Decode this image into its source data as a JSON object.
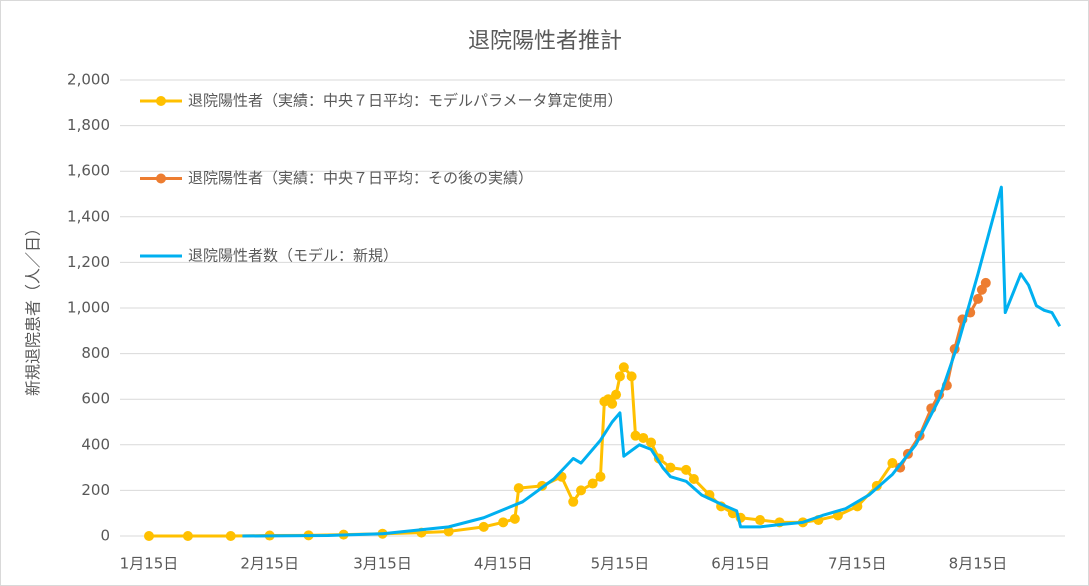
{
  "chart_data": {
    "type": "line",
    "title": "退院陽性者推計",
    "y_label": "新規退院患者（人／日）",
    "ylim": [
      0,
      2000
    ],
    "yticks": [
      0,
      200,
      400,
      600,
      800,
      {
        "value": 1000,
        "label": "1,000"
      },
      {
        "value": 1200,
        "label": "1,200"
      },
      {
        "value": 1400,
        "label": "1,400"
      },
      {
        "value": 1600,
        "label": "1,600"
      },
      {
        "value": 1800,
        "label": "1,800"
      },
      {
        "value": 2000,
        "label": "2,000"
      }
    ],
    "xticks": [
      "1月15日",
      "2月15日",
      "3月15日",
      "4月15日",
      "5月15日",
      "6月15日",
      "7月15日",
      "8月15日"
    ],
    "grid": true,
    "series": [
      {
        "name": "退院陽性者（実績：中央７日平均：モデルパラメータ算定使用）",
        "color": "#ffc000",
        "markers": true,
        "x": [
          "1月15日",
          "1月25日",
          "2月5日",
          "2月15日",
          "2月25日",
          "3月5日",
          "3月15日",
          "3月25日",
          "4月1日",
          "4月10日",
          "4月15日",
          "4月18日",
          "4月19日",
          "4月25日",
          "4月30日",
          "5月3日",
          "5月5日",
          "5月8日",
          "5月10日",
          "5月11日",
          "5月12日",
          "5月13日",
          "5月14日",
          "5月15日",
          "5月16日",
          "5月18日",
          "5月19日",
          "5月21日",
          "5月23日",
          "5月25日",
          "5月28日",
          "6月1日",
          "6月3日",
          "6月7日",
          "6月10日",
          "6月13日",
          "6月15日",
          "6月20日",
          "6月25日",
          "7月1日",
          "7月5日",
          "7月10日",
          "7月15日",
          "7月20日",
          "7月24日"
        ],
        "values": [
          0,
          0,
          0,
          2,
          3,
          6,
          10,
          15,
          20,
          40,
          60,
          75,
          210,
          220,
          260,
          150,
          200,
          230,
          260,
          590,
          600,
          580,
          620,
          700,
          740,
          700,
          440,
          430,
          410,
          340,
          300,
          290,
          250,
          180,
          130,
          100,
          80,
          70,
          60,
          60,
          70,
          90,
          130,
          220,
          320
        ]
      },
      {
        "name": "退院陽性者（実績：中央７日平均：その後の実績）",
        "color": "#ed7d31",
        "markers": true,
        "x": [
          "7月26日",
          "7月28日",
          "7月31日",
          "8月3日",
          "8月5日",
          "8月7日",
          "8月9日",
          "8月11日",
          "8月13日",
          "8月15日",
          "8月16日",
          "8月17日"
        ],
        "values": [
          300,
          360,
          440,
          560,
          620,
          660,
          820,
          950,
          980,
          1040,
          1080,
          1110
        ]
      },
      {
        "name": "退院陽性者数（モデル：新規）",
        "color": "#00b0f0",
        "markers": false,
        "x": [
          "2月8日",
          "3月1日",
          "3月15日",
          "4月1日",
          "4月10日",
          "4月20日",
          "4月28日",
          "5月3日",
          "5月5日",
          "5月10日",
          "5月13日",
          "5月15日",
          "5月16日",
          "5月20日",
          "5月23日",
          "5月26日",
          "5月28日",
          "6月1日",
          "6月5日",
          "6月10日",
          "6月14日",
          "6月15日",
          "6月20日",
          "6月25日",
          "7月1日",
          "7月6日",
          "7月12日",
          "7月18日",
          "7月24日",
          "7月30日",
          "8月5日",
          "8月10日",
          "8月15日",
          "8月21日",
          "8月22日",
          "8月26日",
          "8月28日",
          "8月30日",
          "9月1日",
          "9月3日",
          "9月5日"
        ],
        "values": [
          0,
          2,
          10,
          40,
          80,
          150,
          250,
          340,
          320,
          420,
          500,
          540,
          350,
          400,
          380,
          300,
          260,
          240,
          180,
          140,
          110,
          40,
          40,
          50,
          60,
          90,
          120,
          180,
          270,
          400,
          600,
          850,
          1150,
          1530,
          980,
          1150,
          1100,
          1010,
          990,
          980,
          920
        ]
      }
    ]
  }
}
